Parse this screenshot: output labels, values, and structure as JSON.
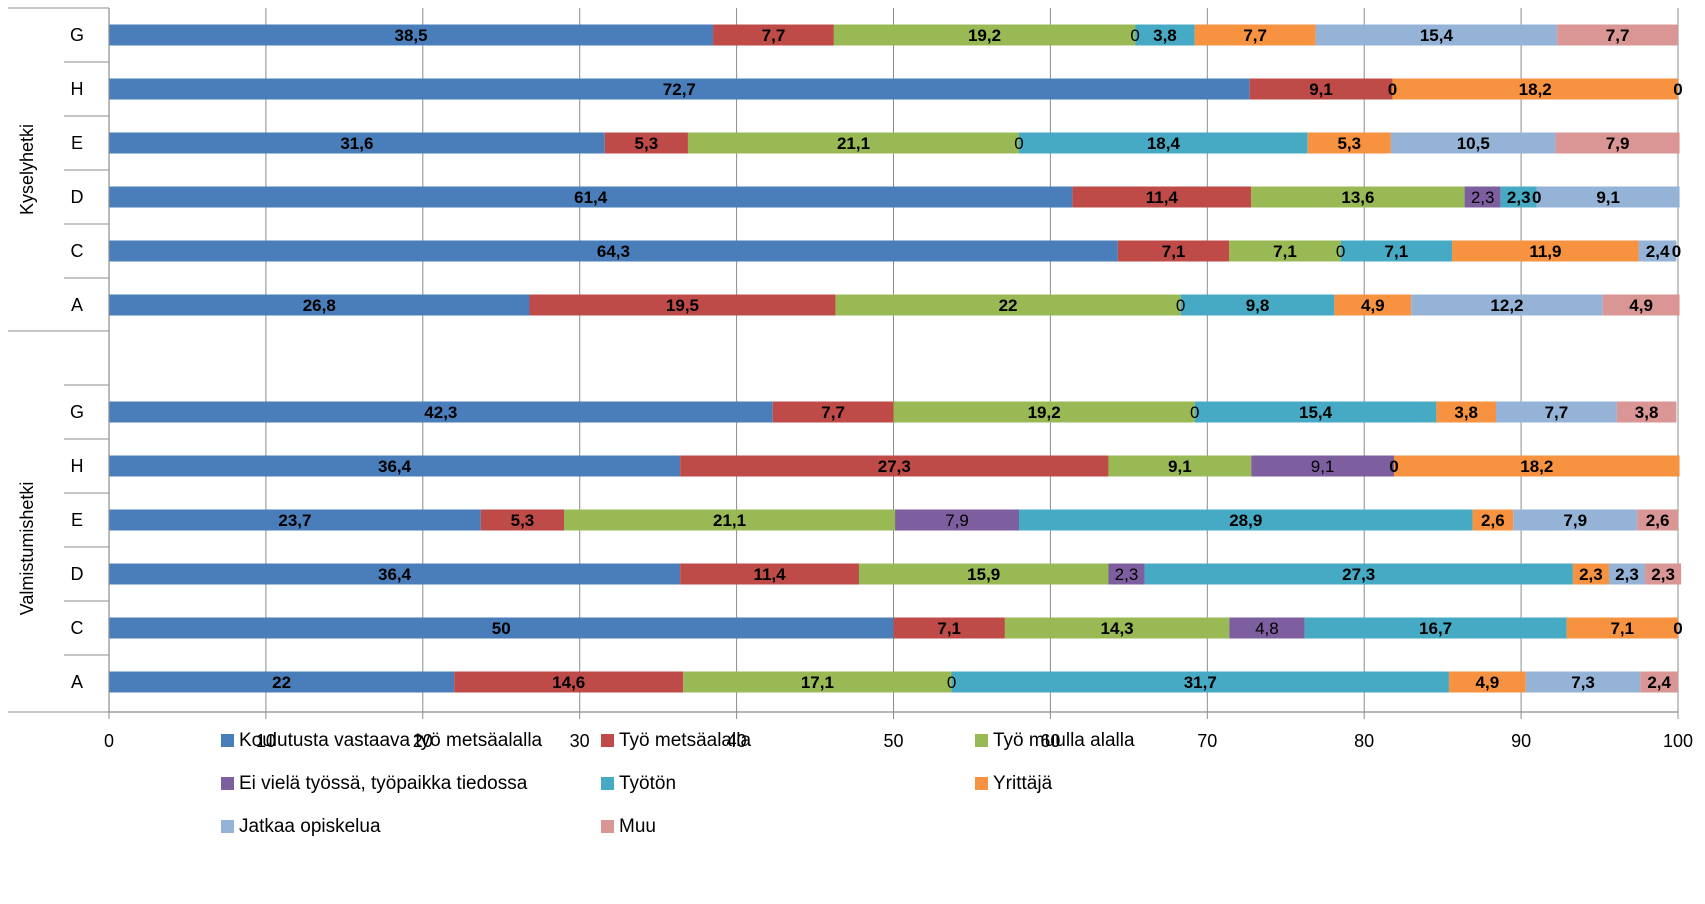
{
  "chart_data": {
    "type": "bar",
    "orientation": "horizontal",
    "stacked": true,
    "xlim": [
      0,
      100
    ],
    "xticks": [
      "0",
      "10",
      "20",
      "30",
      "40",
      "50",
      "60",
      "70",
      "80",
      "90",
      "100"
    ],
    "grid": true,
    "legend_position": "bottom",
    "series": [
      {
        "name": "Koulutusta vastaava työ metsäalalla",
        "color": "#4a7ebb"
      },
      {
        "name": "Työ metsäalalla",
        "color": "#be4b48"
      },
      {
        "name": "Työ muulla alalla",
        "color": "#98b954"
      },
      {
        "name": "Ei vielä työssä, työpaikka tiedossa",
        "color": "#7d5fa0"
      },
      {
        "name": "Työtön",
        "color": "#46aac5"
      },
      {
        "name": "Yrittäjä",
        "color": "#f69240"
      },
      {
        "name": "Jatkaa opiskelua",
        "color": "#95b3d7"
      },
      {
        "name": "Muu",
        "color": "#d99694"
      }
    ],
    "groups": [
      {
        "name": "Kyselyhetki",
        "rows": [
          {
            "category": "G",
            "values": [
              38.5,
              7.7,
              19.2,
              0,
              3.8,
              7.7,
              15.4,
              7.7
            ],
            "labels": [
              "38,5",
              "7,7",
              "19,2",
              "0",
              "3,8",
              "7,7",
              "15,4",
              "7,7"
            ]
          },
          {
            "category": "H",
            "values": [
              72.7,
              9.1,
              0,
              0,
              0,
              18.2,
              0,
              0
            ],
            "labels": [
              "72,7",
              "9,1",
              "",
              "",
              "0",
              "18,2",
              "",
              "0"
            ]
          },
          {
            "category": "E",
            "values": [
              31.6,
              5.3,
              21.1,
              0,
              18.4,
              5.3,
              10.5,
              7.9
            ],
            "labels": [
              "31,6",
              "5,3",
              "21,1",
              "0",
              "18,4",
              "5,3",
              "10,5",
              "7,9"
            ]
          },
          {
            "category": "D",
            "values": [
              61.4,
              11.4,
              13.6,
              2.3,
              2.3,
              0,
              9.1,
              0
            ],
            "labels": [
              "61,4",
              "11,4",
              "13,6",
              "2,3",
              "2,3",
              "0",
              "9,1",
              ""
            ]
          },
          {
            "category": "C",
            "values": [
              64.3,
              7.1,
              7.1,
              0,
              7.1,
              11.9,
              2.4,
              0
            ],
            "labels": [
              "64,3",
              "7,1",
              "7,1",
              "0",
              "7,1",
              "11,9",
              "2,4",
              "0"
            ]
          },
          {
            "category": "A",
            "values": [
              26.8,
              19.5,
              22,
              0,
              9.8,
              4.9,
              12.2,
              4.9
            ],
            "labels": [
              "26,8",
              "19,5",
              "22",
              "0",
              "9,8",
              "4,9",
              "12,2",
              "4,9"
            ]
          }
        ]
      },
      {
        "name": "Valmistumishetki",
        "rows": [
          {
            "category": "G",
            "values": [
              42.3,
              7.7,
              19.2,
              0,
              15.4,
              3.8,
              7.7,
              3.8
            ],
            "labels": [
              "42,3",
              "7,7",
              "19,2",
              "0",
              "15,4",
              "3,8",
              "7,7",
              "3,8"
            ]
          },
          {
            "category": "H",
            "values": [
              36.4,
              27.3,
              9.1,
              9.1,
              0,
              18.2,
              0,
              0
            ],
            "labels": [
              "36,4",
              "27,3",
              "9,1",
              "9,1",
              "0",
              "18,2",
              "",
              ""
            ]
          },
          {
            "category": "E",
            "values": [
              23.7,
              5.3,
              21.1,
              7.9,
              28.9,
              2.6,
              7.9,
              2.6
            ],
            "labels": [
              "23,7",
              "5,3",
              "21,1",
              "7,9",
              "28,9",
              "2,6",
              "7,9",
              "2,6"
            ]
          },
          {
            "category": "D",
            "values": [
              36.4,
              11.4,
              15.9,
              2.3,
              27.3,
              2.3,
              2.3,
              2.3
            ],
            "labels": [
              "36,4",
              "11,4",
              "15,9",
              "2,3",
              "27,3",
              "2,3",
              "2,3",
              "2,3"
            ]
          },
          {
            "category": "C",
            "values": [
              50,
              7.1,
              14.3,
              4.8,
              16.7,
              7.1,
              0,
              0
            ],
            "labels": [
              "50",
              "7,1",
              "14,3",
              "4,8",
              "16,7",
              "7,1",
              "",
              "0"
            ]
          },
          {
            "category": "A",
            "values": [
              22,
              14.6,
              17.1,
              0,
              31.7,
              4.9,
              7.3,
              2.4
            ],
            "labels": [
              "22",
              "14,6",
              "17,1",
              "0",
              "31,7",
              "4,9",
              "7,3",
              "2,4"
            ]
          }
        ]
      }
    ]
  }
}
